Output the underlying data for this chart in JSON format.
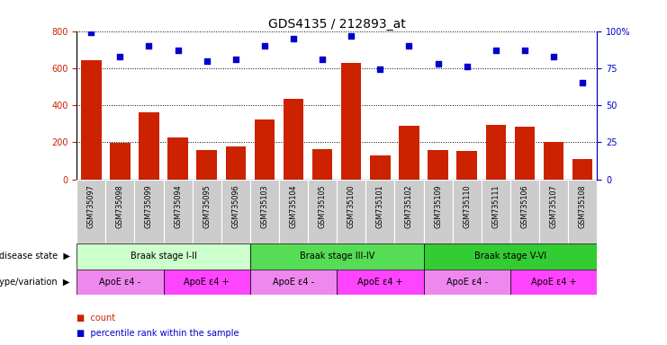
{
  "title": "GDS4135 / 212893_at",
  "samples": [
    "GSM735097",
    "GSM735098",
    "GSM735099",
    "GSM735094",
    "GSM735095",
    "GSM735096",
    "GSM735103",
    "GSM735104",
    "GSM735105",
    "GSM735100",
    "GSM735101",
    "GSM735102",
    "GSM735109",
    "GSM735110",
    "GSM735111",
    "GSM735106",
    "GSM735107",
    "GSM735108"
  ],
  "counts": [
    645,
    195,
    360,
    225,
    160,
    178,
    325,
    435,
    165,
    630,
    130,
    290,
    160,
    155,
    295,
    285,
    200,
    110
  ],
  "percentiles": [
    99,
    83,
    90,
    87,
    80,
    81,
    90,
    95,
    81,
    97,
    74,
    90,
    78,
    76,
    87,
    87,
    83,
    65
  ],
  "ylim_left": [
    0,
    800
  ],
  "ylim_right": [
    0,
    100
  ],
  "yticks_left": [
    0,
    200,
    400,
    600,
    800
  ],
  "yticks_right": [
    0,
    25,
    50,
    75,
    100
  ],
  "bar_color": "#cc2200",
  "dot_color": "#0000cc",
  "background_color": "#ffffff",
  "disease_state_groups": [
    {
      "label": "Braak stage I-II",
      "start": 0,
      "end": 6,
      "color": "#ccffcc"
    },
    {
      "label": "Braak stage III-IV",
      "start": 6,
      "end": 12,
      "color": "#55dd55"
    },
    {
      "label": "Braak stage V-VI",
      "start": 12,
      "end": 18,
      "color": "#33cc33"
    }
  ],
  "genotype_groups": [
    {
      "label": "ApoE ε4 -",
      "start": 0,
      "end": 3,
      "color": "#ee88ee"
    },
    {
      "label": "ApoE ε4 +",
      "start": 3,
      "end": 6,
      "color": "#ff44ff"
    },
    {
      "label": "ApoE ε4 -",
      "start": 6,
      "end": 9,
      "color": "#ee88ee"
    },
    {
      "label": "ApoE ε4 +",
      "start": 9,
      "end": 12,
      "color": "#ff44ff"
    },
    {
      "label": "ApoE ε4 -",
      "start": 12,
      "end": 15,
      "color": "#ee88ee"
    },
    {
      "label": "ApoE ε4 +",
      "start": 15,
      "end": 18,
      "color": "#ff44ff"
    }
  ],
  "legend_count_label": "count",
  "legend_pct_label": "percentile rank within the sample",
  "disease_state_label": "disease state",
  "genotype_label": "genotype/variation",
  "xtick_bg": "#cccccc",
  "title_fontsize": 10,
  "tick_fontsize": 7,
  "label_fontsize": 8
}
